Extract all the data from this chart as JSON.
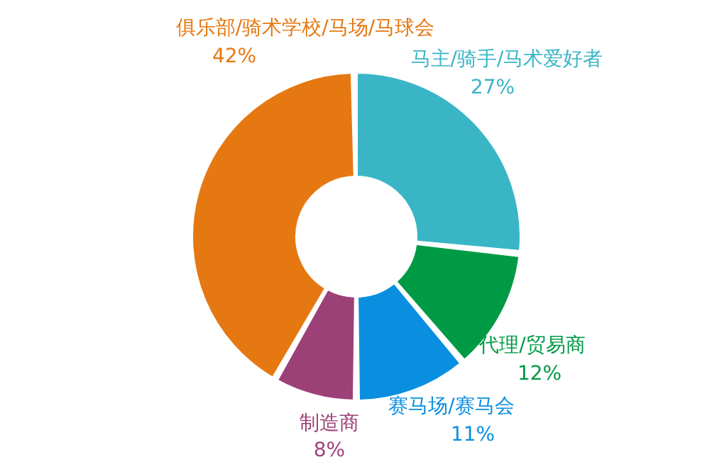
{
  "chart_data": {
    "type": "donut",
    "categories": [
      "马主/骑手/马术爱好者",
      "代理/贸易商",
      "赛马场/赛马会",
      "制造商",
      "俱乐部/骑术学校/马场/马球会"
    ],
    "values": [
      27,
      12,
      11,
      8,
      42
    ],
    "colors": [
      "#3ab5c6",
      "#009a44",
      "#0a8fe0",
      "#9c4078",
      "#e67812"
    ],
    "value_labels": [
      "27%",
      "12%",
      "11%",
      "8%",
      "42%"
    ]
  }
}
